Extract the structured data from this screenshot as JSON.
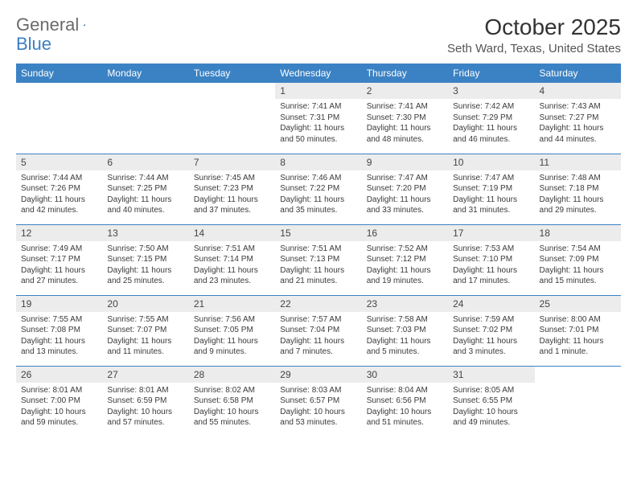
{
  "logo": {
    "text1": "General",
    "text2": "Blue"
  },
  "title": {
    "month": "October 2025",
    "location": "Seth Ward, Texas, United States"
  },
  "colors": {
    "header_bg": "#3b82c4",
    "header_text": "#ffffff",
    "border": "#3b82c4",
    "daynum_bg": "#ececec"
  },
  "weekdays": [
    "Sunday",
    "Monday",
    "Tuesday",
    "Wednesday",
    "Thursday",
    "Friday",
    "Saturday"
  ],
  "weeks": [
    [
      null,
      null,
      null,
      {
        "n": "1",
        "sr": "7:41 AM",
        "ss": "7:31 PM",
        "dl": "11 hours and 50 minutes."
      },
      {
        "n": "2",
        "sr": "7:41 AM",
        "ss": "7:30 PM",
        "dl": "11 hours and 48 minutes."
      },
      {
        "n": "3",
        "sr": "7:42 AM",
        "ss": "7:29 PM",
        "dl": "11 hours and 46 minutes."
      },
      {
        "n": "4",
        "sr": "7:43 AM",
        "ss": "7:27 PM",
        "dl": "11 hours and 44 minutes."
      }
    ],
    [
      {
        "n": "5",
        "sr": "7:44 AM",
        "ss": "7:26 PM",
        "dl": "11 hours and 42 minutes."
      },
      {
        "n": "6",
        "sr": "7:44 AM",
        "ss": "7:25 PM",
        "dl": "11 hours and 40 minutes."
      },
      {
        "n": "7",
        "sr": "7:45 AM",
        "ss": "7:23 PM",
        "dl": "11 hours and 37 minutes."
      },
      {
        "n": "8",
        "sr": "7:46 AM",
        "ss": "7:22 PM",
        "dl": "11 hours and 35 minutes."
      },
      {
        "n": "9",
        "sr": "7:47 AM",
        "ss": "7:20 PM",
        "dl": "11 hours and 33 minutes."
      },
      {
        "n": "10",
        "sr": "7:47 AM",
        "ss": "7:19 PM",
        "dl": "11 hours and 31 minutes."
      },
      {
        "n": "11",
        "sr": "7:48 AM",
        "ss": "7:18 PM",
        "dl": "11 hours and 29 minutes."
      }
    ],
    [
      {
        "n": "12",
        "sr": "7:49 AM",
        "ss": "7:17 PM",
        "dl": "11 hours and 27 minutes."
      },
      {
        "n": "13",
        "sr": "7:50 AM",
        "ss": "7:15 PM",
        "dl": "11 hours and 25 minutes."
      },
      {
        "n": "14",
        "sr": "7:51 AM",
        "ss": "7:14 PM",
        "dl": "11 hours and 23 minutes."
      },
      {
        "n": "15",
        "sr": "7:51 AM",
        "ss": "7:13 PM",
        "dl": "11 hours and 21 minutes."
      },
      {
        "n": "16",
        "sr": "7:52 AM",
        "ss": "7:12 PM",
        "dl": "11 hours and 19 minutes."
      },
      {
        "n": "17",
        "sr": "7:53 AM",
        "ss": "7:10 PM",
        "dl": "11 hours and 17 minutes."
      },
      {
        "n": "18",
        "sr": "7:54 AM",
        "ss": "7:09 PM",
        "dl": "11 hours and 15 minutes."
      }
    ],
    [
      {
        "n": "19",
        "sr": "7:55 AM",
        "ss": "7:08 PM",
        "dl": "11 hours and 13 minutes."
      },
      {
        "n": "20",
        "sr": "7:55 AM",
        "ss": "7:07 PM",
        "dl": "11 hours and 11 minutes."
      },
      {
        "n": "21",
        "sr": "7:56 AM",
        "ss": "7:05 PM",
        "dl": "11 hours and 9 minutes."
      },
      {
        "n": "22",
        "sr": "7:57 AM",
        "ss": "7:04 PM",
        "dl": "11 hours and 7 minutes."
      },
      {
        "n": "23",
        "sr": "7:58 AM",
        "ss": "7:03 PM",
        "dl": "11 hours and 5 minutes."
      },
      {
        "n": "24",
        "sr": "7:59 AM",
        "ss": "7:02 PM",
        "dl": "11 hours and 3 minutes."
      },
      {
        "n": "25",
        "sr": "8:00 AM",
        "ss": "7:01 PM",
        "dl": "11 hours and 1 minute."
      }
    ],
    [
      {
        "n": "26",
        "sr": "8:01 AM",
        "ss": "7:00 PM",
        "dl": "10 hours and 59 minutes."
      },
      {
        "n": "27",
        "sr": "8:01 AM",
        "ss": "6:59 PM",
        "dl": "10 hours and 57 minutes."
      },
      {
        "n": "28",
        "sr": "8:02 AM",
        "ss": "6:58 PM",
        "dl": "10 hours and 55 minutes."
      },
      {
        "n": "29",
        "sr": "8:03 AM",
        "ss": "6:57 PM",
        "dl": "10 hours and 53 minutes."
      },
      {
        "n": "30",
        "sr": "8:04 AM",
        "ss": "6:56 PM",
        "dl": "10 hours and 51 minutes."
      },
      {
        "n": "31",
        "sr": "8:05 AM",
        "ss": "6:55 PM",
        "dl": "10 hours and 49 minutes."
      },
      null
    ]
  ],
  "labels": {
    "sunrise": "Sunrise: ",
    "sunset": "Sunset: ",
    "daylight": "Daylight: "
  }
}
